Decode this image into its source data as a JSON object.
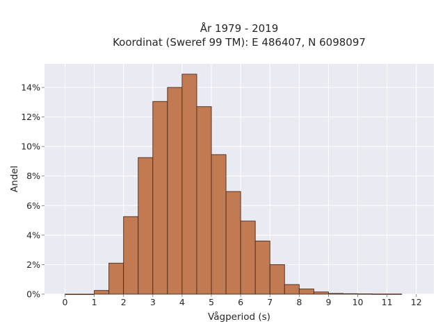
{
  "chart_data": {
    "type": "bar",
    "title": "År 1979 - 2019",
    "subtitle": "Koordinat (Sweref 99 TM): E 486407, N 6098097",
    "xlabel": "Vågperiod (s)",
    "ylabel": "Andel",
    "bin_width": 0.5,
    "bins": [
      {
        "x0": 0.0,
        "value": 0.0
      },
      {
        "x0": 0.5,
        "value": 0.0
      },
      {
        "x0": 1.0,
        "value": 0.25
      },
      {
        "x0": 1.5,
        "value": 2.1
      },
      {
        "x0": 2.0,
        "value": 5.25
      },
      {
        "x0": 2.5,
        "value": 9.25
      },
      {
        "x0": 3.0,
        "value": 13.05
      },
      {
        "x0": 3.5,
        "value": 14.0
      },
      {
        "x0": 4.0,
        "value": 14.9
      },
      {
        "x0": 4.5,
        "value": 12.7
      },
      {
        "x0": 5.0,
        "value": 9.45
      },
      {
        "x0": 5.5,
        "value": 6.95
      },
      {
        "x0": 6.0,
        "value": 4.95
      },
      {
        "x0": 6.5,
        "value": 3.6
      },
      {
        "x0": 7.0,
        "value": 2.0
      },
      {
        "x0": 7.5,
        "value": 0.65
      },
      {
        "x0": 8.0,
        "value": 0.35
      },
      {
        "x0": 8.5,
        "value": 0.15
      },
      {
        "x0": 9.0,
        "value": 0.05
      },
      {
        "x0": 9.5,
        "value": 0.03
      },
      {
        "x0": 10.0,
        "value": 0.02
      },
      {
        "x0": 10.5,
        "value": 0.01
      },
      {
        "x0": 11.0,
        "value": 0.01
      }
    ],
    "xlim": [
      -0.7,
      12.6
    ],
    "ylim": [
      0,
      15.6
    ],
    "xticks": [
      0,
      1,
      2,
      3,
      4,
      5,
      6,
      7,
      8,
      9,
      10,
      11,
      12
    ],
    "yticks": [
      0,
      2,
      4,
      6,
      8,
      10,
      12,
      14
    ],
    "ytick_suffix": "%",
    "grid": true,
    "colors": {
      "bar_fill": "#c17a52",
      "bar_edge": "#4a2a18",
      "plot_background": "#eaeaf2",
      "grid": "#ffffff"
    }
  }
}
